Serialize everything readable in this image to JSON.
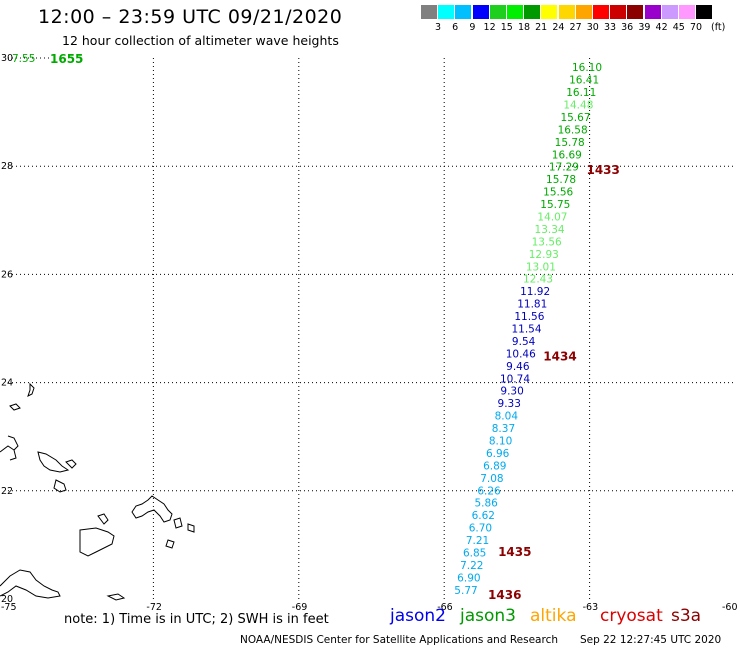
{
  "header": {
    "title": "12:00 – 23:59 UTC 09/21/2020",
    "subtitle": "12 hour collection of altimeter wave heights"
  },
  "colorbar": {
    "unit": "(ft)",
    "swatches": [
      "#808080",
      "#00ffff",
      "#00bfff",
      "#0000ff",
      "#1ecf1e",
      "#00ee00",
      "#009900",
      "#ffff00",
      "#ffd700",
      "#ffa500",
      "#ff0000",
      "#cc0000",
      "#8b0000",
      "#9900cc",
      "#cc99ff",
      "#ff99ff",
      "#000000"
    ],
    "ticks": [
      "3",
      "6",
      "9",
      "12",
      "15",
      "18",
      "21",
      "24",
      "27",
      "30",
      "33",
      "36",
      "39",
      "42",
      "45",
      "70"
    ]
  },
  "axes": {
    "lon_ticks": [
      "-75",
      "-72",
      "-69",
      "-66",
      "-63",
      "-60"
    ],
    "lat_ticks": [
      "20",
      "22",
      "24",
      "26",
      "28",
      "30"
    ]
  },
  "track": [
    {
      "lat": 29.83,
      "v": "16.10",
      "c": "#00aa00"
    },
    {
      "lat": 29.6,
      "v": "16.41",
      "c": "#00aa00"
    },
    {
      "lat": 29.37,
      "v": "16.11",
      "c": "#00aa00"
    },
    {
      "lat": 29.14,
      "v": "14.48",
      "c": "#66ee66"
    },
    {
      "lat": 28.91,
      "v": "15.67",
      "c": "#00aa00"
    },
    {
      "lat": 28.68,
      "v": "16.58",
      "c": "#00aa00"
    },
    {
      "lat": 28.45,
      "v": "15.78",
      "c": "#00aa00"
    },
    {
      "lat": 28.22,
      "v": "16.69",
      "c": "#00aa00"
    },
    {
      "lat": 27.99,
      "v": "17.29",
      "c": "#00aa00"
    },
    {
      "lat": 27.76,
      "v": "15.78",
      "c": "#00aa00"
    },
    {
      "lat": 27.53,
      "v": "15.56",
      "c": "#00aa00"
    },
    {
      "lat": 27.3,
      "v": "15.75",
      "c": "#00aa00"
    },
    {
      "lat": 27.07,
      "v": "14.07",
      "c": "#66ee66"
    },
    {
      "lat": 26.84,
      "v": "13.34",
      "c": "#66ee66"
    },
    {
      "lat": 26.61,
      "v": "13.56",
      "c": "#66ee66"
    },
    {
      "lat": 26.38,
      "v": "12.93",
      "c": "#66ee66"
    },
    {
      "lat": 26.15,
      "v": "13.01",
      "c": "#66ee66"
    },
    {
      "lat": 25.92,
      "v": "12.43",
      "c": "#66ee66"
    },
    {
      "lat": 25.69,
      "v": "11.92",
      "c": "#0000bb"
    },
    {
      "lat": 25.46,
      "v": "11.81",
      "c": "#0000bb"
    },
    {
      "lat": 25.23,
      "v": "11.56",
      "c": "#0000bb"
    },
    {
      "lat": 25.0,
      "v": "11.54",
      "c": "#0000bb"
    },
    {
      "lat": 24.77,
      "v": "9.54",
      "c": "#0000bb"
    },
    {
      "lat": 24.54,
      "v": "10.46",
      "c": "#0000bb"
    },
    {
      "lat": 24.31,
      "v": "9.46",
      "c": "#0000bb"
    },
    {
      "lat": 24.08,
      "v": "10.74",
      "c": "#0000bb"
    },
    {
      "lat": 23.85,
      "v": "9.30",
      "c": "#0000bb"
    },
    {
      "lat": 23.62,
      "v": "9.33",
      "c": "#0000bb"
    },
    {
      "lat": 23.39,
      "v": "8.04",
      "c": "#00aaee"
    },
    {
      "lat": 23.16,
      "v": "8.37",
      "c": "#00aaee"
    },
    {
      "lat": 22.93,
      "v": "8.10",
      "c": "#00aaee"
    },
    {
      "lat": 22.7,
      "v": "6.96",
      "c": "#00aaee"
    },
    {
      "lat": 22.47,
      "v": "6.89",
      "c": "#00aaee"
    },
    {
      "lat": 22.24,
      "v": "7.08",
      "c": "#00aaee"
    },
    {
      "lat": 22.01,
      "v": "6.26",
      "c": "#00aaee"
    },
    {
      "lat": 21.78,
      "v": "5.86",
      "c": "#00aaee"
    },
    {
      "lat": 21.55,
      "v": "6.62",
      "c": "#00aaee"
    },
    {
      "lat": 21.32,
      "v": "6.70",
      "c": "#00aaee"
    },
    {
      "lat": 21.09,
      "v": "7.21",
      "c": "#00aaee"
    },
    {
      "lat": 20.86,
      "v": "6.85",
      "c": "#00aaee"
    },
    {
      "lat": 20.63,
      "v": "7.22",
      "c": "#00aaee"
    },
    {
      "lat": 20.4,
      "v": "6.90",
      "c": "#00aaee"
    },
    {
      "lat": 20.17,
      "v": "5.77",
      "c": "#00aaee"
    }
  ],
  "time_labels": [
    {
      "lat": 27.93,
      "t": "1433",
      "c": "#8b0000"
    },
    {
      "lat": 24.48,
      "t": "1434",
      "c": "#8b0000"
    },
    {
      "lat": 20.87,
      "t": "1435",
      "c": "#8b0000"
    },
    {
      "lat": 20.07,
      "t": "1436",
      "c": "#8b0000"
    }
  ],
  "corner_label": {
    "v": "7.55",
    "t": "1655",
    "c": "#00aa00"
  },
  "legend": {
    "note": "note: 1) Time is in UTC; 2) SWH is in feet",
    "satellites": [
      {
        "name": "jason2",
        "color": "#0000ee"
      },
      {
        "name": "jason3",
        "color": "#009900"
      },
      {
        "name": "altika",
        "color": "#ffa500"
      },
      {
        "name": "cryosat",
        "color": "#dd0000"
      },
      {
        "name": "s3a",
        "color": "#8b0000"
      }
    ]
  },
  "footer": {
    "credit": "NOAA/NESDIS Center for Satellite Applications and Research",
    "timestamp": "Sep 22 12:27:45 UTC 2020"
  }
}
